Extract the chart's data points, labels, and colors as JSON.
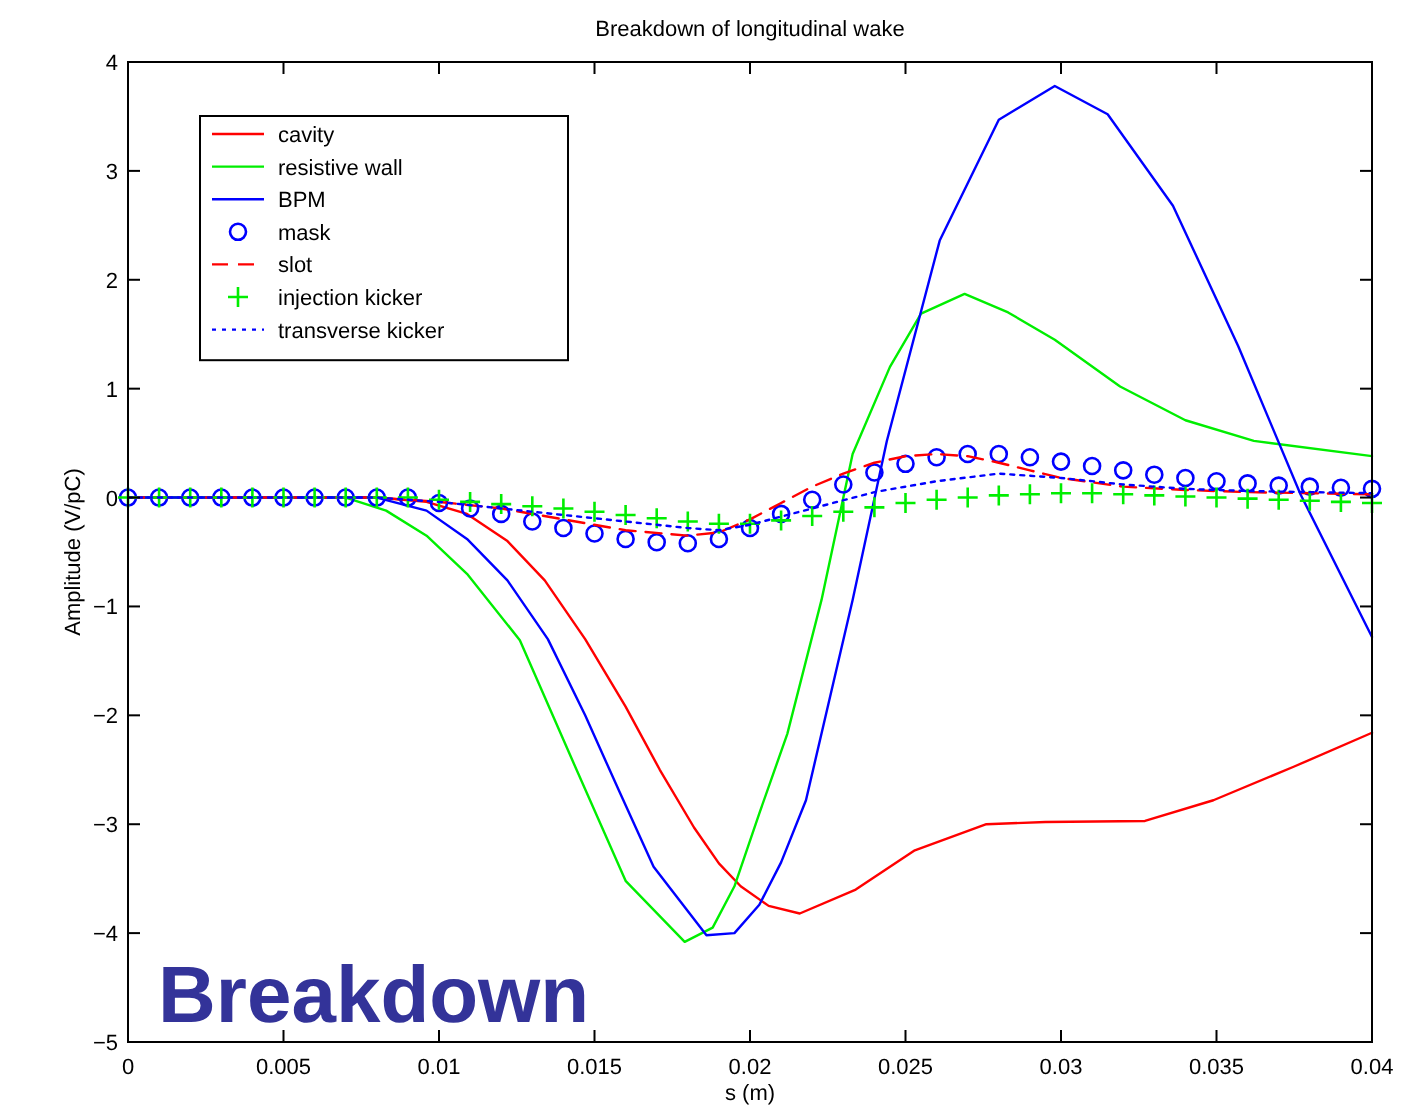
{
  "chart_data": {
    "type": "line",
    "title": "Breakdown of longitudinal wake",
    "xlabel": "s (m)",
    "ylabel": "Amplitude (V/pC)",
    "annotations": [
      "Breakdown"
    ],
    "xlim": [
      0,
      0.04
    ],
    "ylim": [
      -5,
      4
    ],
    "xticks": [
      0,
      0.005,
      0.01,
      0.015,
      0.02,
      0.025,
      0.03,
      0.035,
      0.04
    ],
    "yticks": [
      -5,
      -4,
      -3,
      -2,
      -1,
      0,
      1,
      2,
      3,
      4
    ],
    "grid": false,
    "legend": "top left",
    "series": [
      {
        "name": "cavity",
        "color": "#ff0000",
        "line_style": "solid",
        "x": [
          0,
          0.008,
          0.0096,
          0.0109,
          0.0122,
          0.0134,
          0.0147,
          0.016,
          0.0171,
          0.0182,
          0.019,
          0.0197,
          0.0206,
          0.0216,
          0.0234,
          0.0253,
          0.0276,
          0.0295,
          0.0327,
          0.0349,
          0.0375,
          0.04
        ],
        "values": [
          0,
          0,
          -0.04,
          -0.15,
          -0.4,
          -0.76,
          -1.3,
          -1.92,
          -2.5,
          -3.03,
          -3.36,
          -3.57,
          -3.75,
          -3.82,
          -3.6,
          -3.24,
          -3.0,
          -2.98,
          -2.97,
          -2.78,
          -2.47,
          -2.16
        ]
      },
      {
        "name": "resistive wall",
        "color": "#00ee00",
        "line_style": "solid",
        "x": [
          0,
          0.007,
          0.0083,
          0.0096,
          0.0109,
          0.0126,
          0.0143,
          0.016,
          0.0179,
          0.0188,
          0.0195,
          0.0203,
          0.0212,
          0.0223,
          0.0233,
          0.0245,
          0.0255,
          0.0269,
          0.0283,
          0.0298,
          0.0319,
          0.034,
          0.0362,
          0.04
        ],
        "values": [
          0,
          0,
          -0.12,
          -0.35,
          -0.7,
          -1.31,
          -2.42,
          -3.52,
          -4.08,
          -3.95,
          -3.57,
          -2.9,
          -2.17,
          -0.94,
          0.4,
          1.2,
          1.69,
          1.87,
          1.7,
          1.45,
          1.02,
          0.71,
          0.52,
          0.38
        ]
      },
      {
        "name": "BPM",
        "color": "#0000ff",
        "line_style": "solid",
        "x": [
          0,
          0.008,
          0.0096,
          0.0109,
          0.0122,
          0.0135,
          0.0147,
          0.0158,
          0.0169,
          0.0186,
          0.0195,
          0.0203,
          0.021,
          0.0218,
          0.0233,
          0.0244,
          0.0261,
          0.028,
          0.0298,
          0.0315,
          0.0336,
          0.0357,
          0.0377,
          0.04
        ],
        "values": [
          0,
          0,
          -0.12,
          -0.38,
          -0.76,
          -1.3,
          -2.0,
          -2.7,
          -3.39,
          -4.02,
          -4.0,
          -3.74,
          -3.35,
          -2.78,
          -0.94,
          0.52,
          2.36,
          3.47,
          3.78,
          3.52,
          2.68,
          1.39,
          0.03,
          -1.28
        ]
      },
      {
        "name": "mask",
        "color": "#0000ff",
        "type": "scatter",
        "marker": "circle",
        "x": [
          0,
          0.001,
          0.002,
          0.003,
          0.004,
          0.005,
          0.006,
          0.007,
          0.008,
          0.009,
          0.01,
          0.011,
          0.012,
          0.013,
          0.014,
          0.015,
          0.016,
          0.017,
          0.018,
          0.019,
          0.02,
          0.021,
          0.022,
          0.023,
          0.024,
          0.025,
          0.026,
          0.027,
          0.028,
          0.029,
          0.03,
          0.031,
          0.032,
          0.033,
          0.034,
          0.035,
          0.036,
          0.037,
          0.038,
          0.039,
          0.04
        ],
        "values": [
          0,
          0,
          0,
          0,
          0,
          0,
          0,
          0,
          0,
          0,
          -0.05,
          -0.1,
          -0.15,
          -0.22,
          -0.28,
          -0.33,
          -0.38,
          -0.41,
          -0.42,
          -0.38,
          -0.28,
          -0.15,
          -0.02,
          0.12,
          0.23,
          0.31,
          0.37,
          0.4,
          0.4,
          0.37,
          0.33,
          0.29,
          0.25,
          0.21,
          0.18,
          0.15,
          0.13,
          0.11,
          0.1,
          0.09,
          0.08
        ]
      },
      {
        "name": "slot",
        "color": "#ff0000",
        "line_style": "dashed",
        "x": [
          0,
          0.008,
          0.01,
          0.012,
          0.014,
          0.016,
          0.018,
          0.019,
          0.02,
          0.021,
          0.022,
          0.023,
          0.024,
          0.025,
          0.026,
          0.027,
          0.028,
          0.029,
          0.03,
          0.032,
          0.034,
          0.036,
          0.038,
          0.04
        ],
        "values": [
          0,
          0,
          -0.04,
          -0.1,
          -0.2,
          -0.3,
          -0.35,
          -0.32,
          -0.2,
          -0.05,
          0.1,
          0.22,
          0.32,
          0.38,
          0.4,
          0.38,
          0.32,
          0.25,
          0.18,
          0.1,
          0.07,
          0.05,
          0.04,
          0.03
        ]
      },
      {
        "name": "injection kicker",
        "color": "#00ee00",
        "type": "scatter",
        "marker": "cross",
        "x": [
          0,
          0.001,
          0.002,
          0.003,
          0.004,
          0.005,
          0.006,
          0.007,
          0.008,
          0.009,
          0.01,
          0.011,
          0.012,
          0.013,
          0.014,
          0.015,
          0.016,
          0.017,
          0.018,
          0.019,
          0.02,
          0.021,
          0.022,
          0.023,
          0.024,
          0.025,
          0.026,
          0.027,
          0.028,
          0.029,
          0.03,
          0.031,
          0.032,
          0.033,
          0.034,
          0.035,
          0.036,
          0.037,
          0.038,
          0.039,
          0.04
        ],
        "values": [
          0,
          0,
          0,
          0,
          0,
          0,
          0,
          0,
          0,
          0,
          -0.02,
          -0.04,
          -0.06,
          -0.08,
          -0.1,
          -0.13,
          -0.16,
          -0.19,
          -0.22,
          -0.24,
          -0.24,
          -0.21,
          -0.17,
          -0.13,
          -0.09,
          -0.05,
          -0.02,
          0,
          0.02,
          0.03,
          0.04,
          0.04,
          0.03,
          0.02,
          0.01,
          0,
          -0.01,
          -0.02,
          -0.03,
          -0.04,
          -0.05
        ]
      },
      {
        "name": "transverse kicker",
        "color": "#0000ff",
        "line_style": "dotted",
        "x": [
          0,
          0.008,
          0.01,
          0.012,
          0.014,
          0.016,
          0.018,
          0.019,
          0.02,
          0.022,
          0.024,
          0.026,
          0.028,
          0.03,
          0.032,
          0.034,
          0.036,
          0.038,
          0.04
        ],
        "values": [
          0,
          0,
          -0.04,
          -0.1,
          -0.16,
          -0.22,
          -0.28,
          -0.3,
          -0.25,
          -0.1,
          0.05,
          0.15,
          0.22,
          0.18,
          0.12,
          0.08,
          0.06,
          0.05,
          0.04
        ]
      }
    ]
  }
}
